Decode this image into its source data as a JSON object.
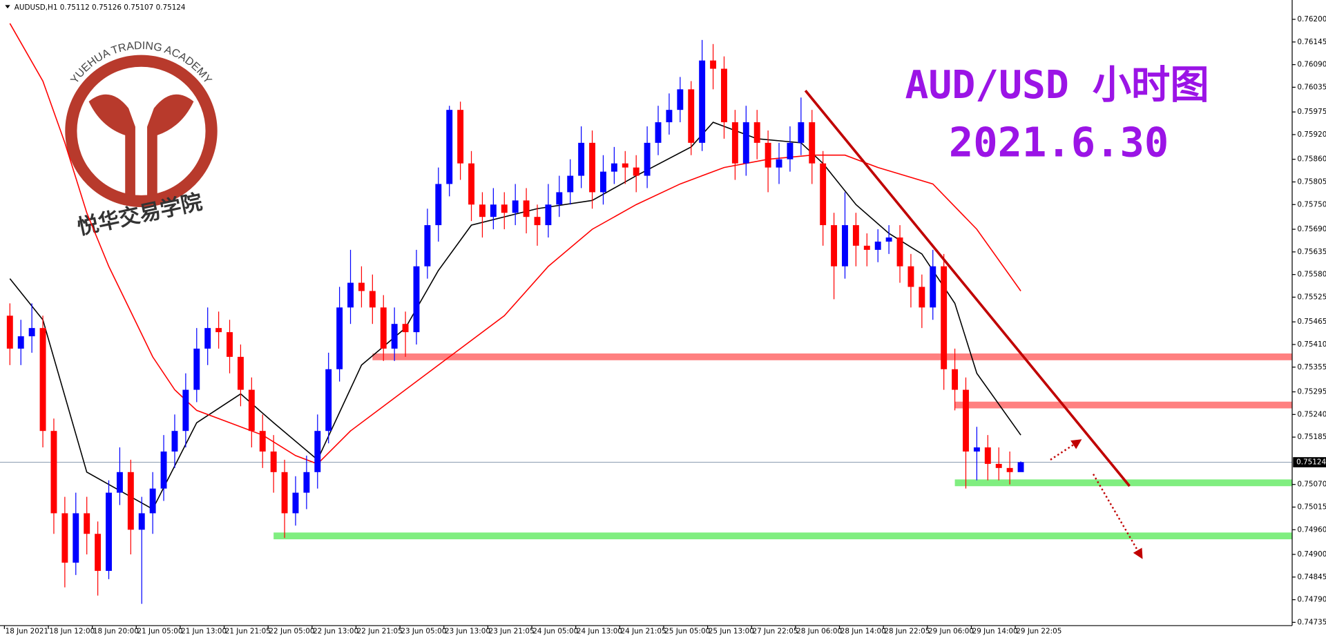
{
  "chart_data": {
    "type": "candlestick",
    "header": "AUDUSD,H1  0.75112 0.75126 0.75107 0.75124",
    "title": "AUD/USD 小时图",
    "subtitle": "2021.6.30",
    "watermark": {
      "top_text": "YUEHUA TRADING ACADEMY",
      "bottom_text": "悦华交易学院"
    },
    "up_color": "#0000ff",
    "down_color": "#ff0000",
    "xlim": [
      -0.9,
      116.7
    ],
    "ylim": [
      0.74727,
      0.76247
    ],
    "candles": [
      [
        0.7548,
        0.7551,
        0.7536,
        0.754
      ],
      [
        0.754,
        0.7547,
        0.7536,
        0.7543
      ],
      [
        0.7543,
        0.7551,
        0.7539,
        0.7545
      ],
      [
        0.7545,
        0.7548,
        0.7516,
        0.752
      ],
      [
        0.752,
        0.7523,
        0.7495,
        0.75
      ],
      [
        0.75,
        0.7504,
        0.7482,
        0.7488
      ],
      [
        0.7488,
        0.7505,
        0.7485,
        0.75
      ],
      [
        0.75,
        0.7504,
        0.749,
        0.7495
      ],
      [
        0.7495,
        0.7498,
        0.748,
        0.7486
      ],
      [
        0.7486,
        0.7508,
        0.7484,
        0.7505
      ],
      [
        0.7505,
        0.7516,
        0.7502,
        0.751
      ],
      [
        0.751,
        0.7513,
        0.749,
        0.7496
      ],
      [
        0.7496,
        0.7504,
        0.7478,
        0.75
      ],
      [
        0.75,
        0.751,
        0.7495,
        0.7506
      ],
      [
        0.7506,
        0.7519,
        0.7503,
        0.7515
      ],
      [
        0.7515,
        0.7524,
        0.7511,
        0.752
      ],
      [
        0.752,
        0.7534,
        0.7516,
        0.753
      ],
      [
        0.753,
        0.7545,
        0.7527,
        0.754
      ],
      [
        0.754,
        0.755,
        0.7536,
        0.7545
      ],
      [
        0.7545,
        0.7549,
        0.754,
        0.7544
      ],
      [
        0.7544,
        0.7547,
        0.7534,
        0.7538
      ],
      [
        0.7538,
        0.7541,
        0.7526,
        0.753
      ],
      [
        0.753,
        0.7533,
        0.7516,
        0.752
      ],
      [
        0.752,
        0.7524,
        0.7511,
        0.7515
      ],
      [
        0.7515,
        0.7519,
        0.7505,
        0.751
      ],
      [
        0.751,
        0.7513,
        0.7494,
        0.75
      ],
      [
        0.75,
        0.7509,
        0.7497,
        0.7505
      ],
      [
        0.7505,
        0.7514,
        0.7501,
        0.751
      ],
      [
        0.751,
        0.7524,
        0.7506,
        0.752
      ],
      [
        0.752,
        0.7539,
        0.7517,
        0.7535
      ],
      [
        0.7535,
        0.7555,
        0.7532,
        0.755
      ],
      [
        0.755,
        0.7564,
        0.7546,
        0.7556
      ],
      [
        0.7556,
        0.756,
        0.755,
        0.7554
      ],
      [
        0.7554,
        0.7558,
        0.7546,
        0.755
      ],
      [
        0.755,
        0.7553,
        0.7537,
        0.754
      ],
      [
        0.754,
        0.755,
        0.7537,
        0.7546
      ],
      [
        0.7546,
        0.7549,
        0.7538,
        0.7544
      ],
      [
        0.7544,
        0.7564,
        0.7541,
        0.756
      ],
      [
        0.756,
        0.7574,
        0.7557,
        0.757
      ],
      [
        0.757,
        0.7584,
        0.7566,
        0.758
      ],
      [
        0.758,
        0.7599,
        0.7577,
        0.7598
      ],
      [
        0.7598,
        0.76,
        0.7581,
        0.7585
      ],
      [
        0.7585,
        0.7588,
        0.7571,
        0.7575
      ],
      [
        0.7575,
        0.7578,
        0.7567,
        0.7572
      ],
      [
        0.7572,
        0.7579,
        0.7569,
        0.7575
      ],
      [
        0.7575,
        0.7578,
        0.7569,
        0.7573
      ],
      [
        0.7573,
        0.758,
        0.757,
        0.7576
      ],
      [
        0.7576,
        0.7579,
        0.7568,
        0.7572
      ],
      [
        0.7572,
        0.7575,
        0.7565,
        0.757
      ],
      [
        0.757,
        0.758,
        0.7567,
        0.7575
      ],
      [
        0.7575,
        0.7582,
        0.7572,
        0.7578
      ],
      [
        0.7578,
        0.7586,
        0.7575,
        0.7582
      ],
      [
        0.7582,
        0.7594,
        0.7579,
        0.759
      ],
      [
        0.759,
        0.7593,
        0.7574,
        0.7578
      ],
      [
        0.7578,
        0.7587,
        0.7575,
        0.7583
      ],
      [
        0.7583,
        0.7589,
        0.758,
        0.7585
      ],
      [
        0.7585,
        0.7588,
        0.758,
        0.7584
      ],
      [
        0.7584,
        0.7587,
        0.7578,
        0.7582
      ],
      [
        0.7582,
        0.7594,
        0.7579,
        0.759
      ],
      [
        0.759,
        0.7599,
        0.7587,
        0.7595
      ],
      [
        0.7595,
        0.7602,
        0.7592,
        0.7598
      ],
      [
        0.7598,
        0.7606,
        0.7595,
        0.7603
      ],
      [
        0.7603,
        0.7605,
        0.7587,
        0.759
      ],
      [
        0.759,
        0.7615,
        0.7588,
        0.761
      ],
      [
        0.761,
        0.7614,
        0.7603,
        0.7608
      ],
      [
        0.7608,
        0.7611,
        0.7591,
        0.7595
      ],
      [
        0.7595,
        0.7598,
        0.7581,
        0.7585
      ],
      [
        0.7585,
        0.7599,
        0.7582,
        0.7595
      ],
      [
        0.7595,
        0.7598,
        0.7586,
        0.759
      ],
      [
        0.759,
        0.7593,
        0.7578,
        0.7584
      ],
      [
        0.7584,
        0.759,
        0.758,
        0.7586
      ],
      [
        0.7586,
        0.7594,
        0.7583,
        0.759
      ],
      [
        0.759,
        0.7601,
        0.7587,
        0.7595
      ],
      [
        0.7595,
        0.7598,
        0.758,
        0.7585
      ],
      [
        0.7585,
        0.7588,
        0.7565,
        0.757
      ],
      [
        0.757,
        0.7573,
        0.7552,
        0.756
      ],
      [
        0.756,
        0.7578,
        0.7557,
        0.757
      ],
      [
        0.757,
        0.7573,
        0.756,
        0.7565
      ],
      [
        0.7565,
        0.7568,
        0.756,
        0.7564
      ],
      [
        0.7564,
        0.7569,
        0.7561,
        0.7566
      ],
      [
        0.7566,
        0.757,
        0.7563,
        0.7567
      ],
      [
        0.7567,
        0.757,
        0.7556,
        0.756
      ],
      [
        0.756,
        0.7563,
        0.755,
        0.7555
      ],
      [
        0.7555,
        0.7558,
        0.7545,
        0.755
      ],
      [
        0.755,
        0.7564,
        0.7547,
        0.756
      ],
      [
        0.756,
        0.7563,
        0.753,
        0.7535
      ],
      [
        0.7535,
        0.754,
        0.7525,
        0.753
      ],
      [
        0.753,
        0.7533,
        0.7506,
        0.7515
      ],
      [
        0.7515,
        0.7521,
        0.7508,
        0.7516
      ],
      [
        0.7516,
        0.7519,
        0.7508,
        0.7512
      ],
      [
        0.7512,
        0.7516,
        0.7508,
        0.7511
      ],
      [
        0.7511,
        0.7515,
        0.7507,
        0.751
      ],
      [
        0.751,
        0.75126,
        0.75107,
        0.75124
      ]
    ],
    "moving_averages": [
      {
        "color": "#000000",
        "x": [
          0,
          3,
          7,
          9,
          13,
          17,
          21,
          24,
          28,
          32,
          36,
          39,
          42,
          48,
          53,
          57,
          62,
          64,
          68,
          72,
          74,
          77,
          80,
          83,
          86,
          88,
          92
        ],
        "values": [
          0.7557,
          0.7547,
          0.751,
          0.7507,
          0.7501,
          0.7522,
          0.7529,
          0.7522,
          0.7513,
          0.7536,
          0.7545,
          0.7559,
          0.757,
          0.7574,
          0.7576,
          0.7582,
          0.7589,
          0.7595,
          0.7591,
          0.759,
          0.7585,
          0.7575,
          0.7568,
          0.7563,
          0.7551,
          0.7534,
          0.7519
        ]
      },
      {
        "color": "#ff0000",
        "x": [
          0,
          3,
          5,
          7,
          9,
          11,
          13,
          15,
          17,
          20,
          23,
          26,
          28,
          31,
          34,
          37,
          40,
          45,
          49,
          53,
          57,
          61,
          65,
          69,
          73,
          76,
          79,
          84,
          88,
          92
        ],
        "values": [
          0.7619,
          0.7605,
          0.759,
          0.7573,
          0.756,
          0.7549,
          0.7538,
          0.753,
          0.7525,
          0.7522,
          0.7519,
          0.7514,
          0.7512,
          0.752,
          0.7526,
          0.7532,
          0.7538,
          0.7548,
          0.756,
          0.7569,
          0.7575,
          0.758,
          0.7584,
          0.7586,
          0.7587,
          0.7587,
          0.7584,
          0.758,
          0.7569,
          0.7554
        ]
      }
    ],
    "zones": [
      {
        "value": 0.7538,
        "from": 33,
        "color": "#ff8080"
      },
      {
        "value": 0.75263,
        "from": 86,
        "color": "#ff8080"
      },
      {
        "value": 0.75074,
        "from": 86,
        "color": "#80ee80"
      },
      {
        "value": 0.74945,
        "from": 24,
        "color": "#80ee80"
      }
    ],
    "lines": [
      {
        "x": [
          72.4,
          101.9
        ],
        "y": [
          0.76027,
          0.75066
        ],
        "color": "#c00000",
        "style": "solid"
      },
      {
        "x": [
          94.7,
          97.4
        ],
        "y": [
          0.7513,
          0.75177
        ],
        "color": "#c00000",
        "style": "dotted"
      },
      {
        "x": [
          98.6,
          103
        ],
        "y": [
          0.75095,
          0.74893
        ],
        "color": "#c00000",
        "style": "dotted"
      }
    ],
    "last_price": 0.75124,
    "yticks": [
      {
        "value": 0.762,
        "label": "0.76200"
      },
      {
        "value": 0.76145,
        "label": "0.76145"
      },
      {
        "value": 0.7609,
        "label": "0.76090"
      },
      {
        "value": 0.76035,
        "label": "0.76035"
      },
      {
        "value": 0.75975,
        "label": "0.75975"
      },
      {
        "value": 0.7592,
        "label": "0.75920"
      },
      {
        "value": 0.7586,
        "label": "0.75860"
      },
      {
        "value": 0.75805,
        "label": "0.75805"
      },
      {
        "value": 0.7575,
        "label": "0.75750"
      },
      {
        "value": 0.7569,
        "label": "0.75690"
      },
      {
        "value": 0.75635,
        "label": "0.75635"
      },
      {
        "value": 0.7558,
        "label": "0.75580"
      },
      {
        "value": 0.75525,
        "label": "0.75525"
      },
      {
        "value": 0.75465,
        "label": "0.75465"
      },
      {
        "value": 0.7541,
        "label": "0.75410"
      },
      {
        "value": 0.75355,
        "label": "0.75355"
      },
      {
        "value": 0.75295,
        "label": "0.75295"
      },
      {
        "value": 0.7524,
        "label": "0.75240"
      },
      {
        "value": 0.75185,
        "label": "0.75185"
      },
      {
        "value": 0.7507,
        "label": "0.75070"
      },
      {
        "value": 0.75015,
        "label": "0.75015"
      },
      {
        "value": 0.7496,
        "label": "0.74960"
      },
      {
        "value": 0.749,
        "label": "0.74900"
      },
      {
        "value": 0.74845,
        "label": "0.74845"
      },
      {
        "value": 0.7479,
        "label": "0.74790"
      },
      {
        "value": 0.74735,
        "label": "0.74735"
      }
    ],
    "xticks": [
      {
        "value": 0,
        "label": "18 Jun 2021"
      },
      {
        "value": 4,
        "label": "18 Jun 12:00"
      },
      {
        "value": 8,
        "label": "18 Jun 20:00"
      },
      {
        "value": 12,
        "label": "21 Jun 05:00"
      },
      {
        "value": 16,
        "label": "21 Jun 13:00"
      },
      {
        "value": 20,
        "label": "21 Jun 21:05"
      },
      {
        "value": 24,
        "label": "22 Jun 05:00"
      },
      {
        "value": 28,
        "label": "22 Jun 13:00"
      },
      {
        "value": 32,
        "label": "22 Jun 21:05"
      },
      {
        "value": 36,
        "label": "23 Jun 05:00"
      },
      {
        "value": 40,
        "label": "23 Jun 13:00"
      },
      {
        "value": 44,
        "label": "23 Jun 21:05"
      },
      {
        "value": 48,
        "label": "24 Jun 05:00"
      },
      {
        "value": 52,
        "label": "24 Jun 13:00"
      },
      {
        "value": 56,
        "label": "24 Jun 21:05"
      },
      {
        "value": 60,
        "label": "25 Jun 05:00"
      },
      {
        "value": 64,
        "label": "25 Jun 13:00"
      },
      {
        "value": 68,
        "label": "27 Jun 22:05"
      },
      {
        "value": 72,
        "label": "28 Jun 06:00"
      },
      {
        "value": 76,
        "label": "28 Jun 14:00"
      },
      {
        "value": 80,
        "label": "28 Jun 22:05"
      },
      {
        "value": 84,
        "label": "29 Jun 06:00"
      },
      {
        "value": 88,
        "label": "29 Jun 14:00"
      },
      {
        "value": 92,
        "label": "29 Jun 22:05"
      }
    ]
  }
}
